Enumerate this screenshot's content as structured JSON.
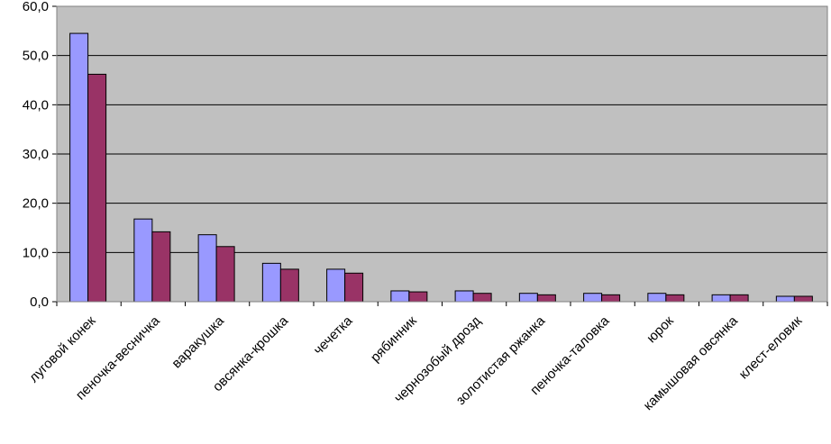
{
  "chart_data": {
    "type": "bar",
    "title": "",
    "xlabel": "",
    "ylabel": "",
    "ylim": [
      0,
      60
    ],
    "yticks": [
      "0,0",
      "10,0",
      "20,0",
      "30,0",
      "40,0",
      "50,0",
      "60,0"
    ],
    "grid": true,
    "legend": "none",
    "categories": [
      "луговой конек",
      "пеночка-весничка",
      "варакушка",
      "овсянка-крошка",
      "чечетка",
      "рябинник",
      "чернозобый дрозд",
      "золотистая ржанка",
      "пеночка-таловка",
      "юрок",
      "камышовая овсянка",
      "клест-еловик"
    ],
    "series": [
      {
        "values": [
          54.5,
          16.8,
          13.6,
          7.8,
          6.6,
          2.2,
          2.2,
          1.7,
          1.7,
          1.7,
          1.4,
          1.1
        ]
      },
      {
        "values": [
          46.2,
          14.2,
          11.2,
          6.6,
          5.8,
          2.0,
          1.7,
          1.4,
          1.4,
          1.4,
          1.4,
          1.1
        ]
      }
    ],
    "colors": {
      "plot_bg": "#c0c0c0",
      "series1": "#9999ff",
      "series2": "#993366",
      "grid": "#000000",
      "axis": "#000000"
    }
  }
}
